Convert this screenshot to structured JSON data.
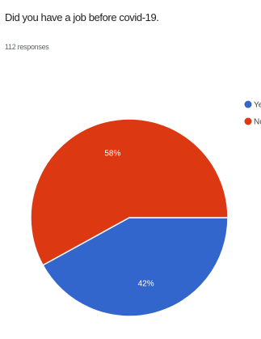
{
  "question": {
    "title": "Did you have a job before covid-19.",
    "responses": "112 responses"
  },
  "chart_data": {
    "type": "pie",
    "title": "Did you have a job before covid-19.",
    "categories": [
      "Yes",
      "No"
    ],
    "values": [
      42,
      58
    ],
    "unit": "%",
    "labels": [
      "42%",
      "58%"
    ],
    "colors": [
      "#3366cc",
      "#dc3912"
    ],
    "legend_position": "right"
  }
}
